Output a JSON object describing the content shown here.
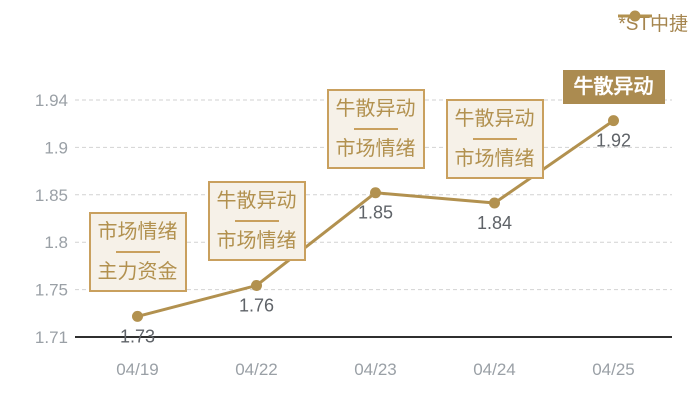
{
  "legend": {
    "label": "*ST中捷"
  },
  "colors": {
    "line": "#b2914f",
    "legend_text": "#a5854e",
    "annotation_border": "#c9a05e",
    "annotation_bg": "#f6f1e8",
    "annotation_text": "#b2914f",
    "highlight_bg": "#ab8b50",
    "highlight_text": "#ffffff",
    "axis_label": "#9aa0a6",
    "value_label": "#5f6368",
    "axis_line": "#2f2f2f",
    "gridline": "#d2d2d2"
  },
  "chart_data": {
    "type": "line",
    "title": "",
    "categories": [
      "04/19",
      "04/22",
      "04/23",
      "04/24",
      "04/25"
    ],
    "series": [
      {
        "name": "*ST中捷",
        "values": [
          1.73,
          1.76,
          1.85,
          1.84,
          1.92
        ]
      }
    ],
    "point_labels": [
      "1.73",
      "1.76",
      "1.85",
      "1.84",
      "1.92"
    ],
    "y_ticks": [
      "1.94",
      "1.9",
      "1.85",
      "1.8",
      "1.75",
      "1.71"
    ],
    "ylim": [
      1.71,
      1.94
    ],
    "grid": "horizontal-dashed",
    "legend_position": "top-right",
    "annotations": [
      {
        "point_index": 0,
        "lines": [
          "市场情绪",
          "主力资金"
        ],
        "highlighted": false
      },
      {
        "point_index": 1,
        "lines": [
          "牛散异动",
          "市场情绪"
        ],
        "highlighted": false
      },
      {
        "point_index": 2,
        "lines": [
          "牛散异动",
          "市场情绪"
        ],
        "highlighted": false
      },
      {
        "point_index": 3,
        "lines": [
          "牛散异动",
          "市场情绪"
        ],
        "highlighted": false
      },
      {
        "point_index": 4,
        "lines": [
          "牛散异动"
        ],
        "highlighted": true
      }
    ]
  }
}
